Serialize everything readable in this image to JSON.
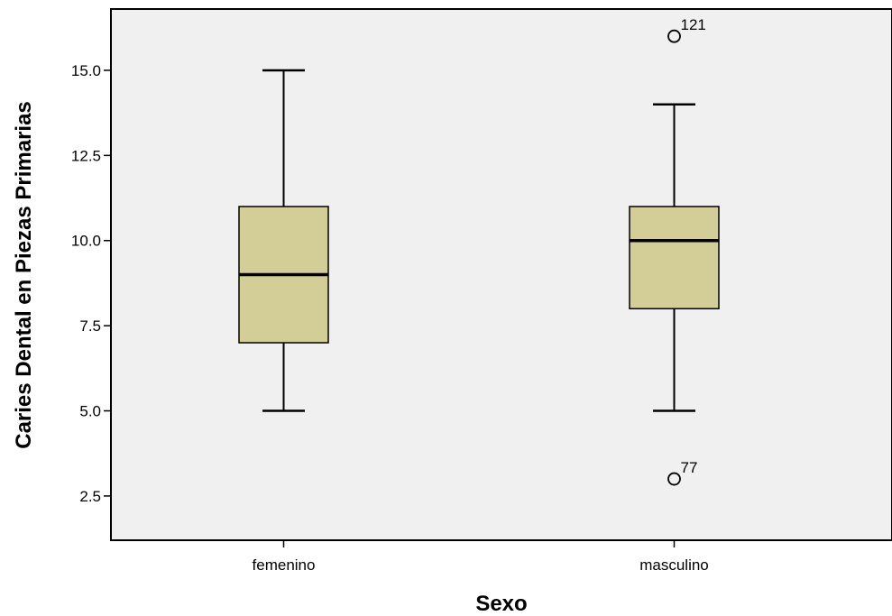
{
  "chart_data": {
    "type": "boxplot",
    "xlabel": "Sexo",
    "ylabel": "Caries Dental en Piezas Primarias",
    "ylim": [
      1.2,
      16.8
    ],
    "yticks": [
      2.5,
      5.0,
      7.5,
      10.0,
      12.5,
      15.0
    ],
    "ytick_labels": [
      "2.5",
      "5.0",
      "7.5",
      "10.0",
      "12.5",
      "15.0"
    ],
    "grid": false,
    "categories": [
      "femenino",
      "masculino"
    ],
    "boxes": [
      {
        "category": "femenino",
        "whisker_low": 5,
        "q1": 7,
        "median": 9,
        "q3": 11,
        "whisker_high": 15,
        "outliers": []
      },
      {
        "category": "masculino",
        "whisker_low": 5,
        "q1": 8,
        "median": 10,
        "q3": 11,
        "whisker_high": 14,
        "outliers": [
          {
            "value": 16,
            "label": "121"
          },
          {
            "value": 3,
            "label": "77"
          }
        ]
      }
    ],
    "colors": {
      "box_fill": "#d3cd98",
      "plot_background": "#f0f0f0",
      "stroke": "#000000"
    }
  }
}
